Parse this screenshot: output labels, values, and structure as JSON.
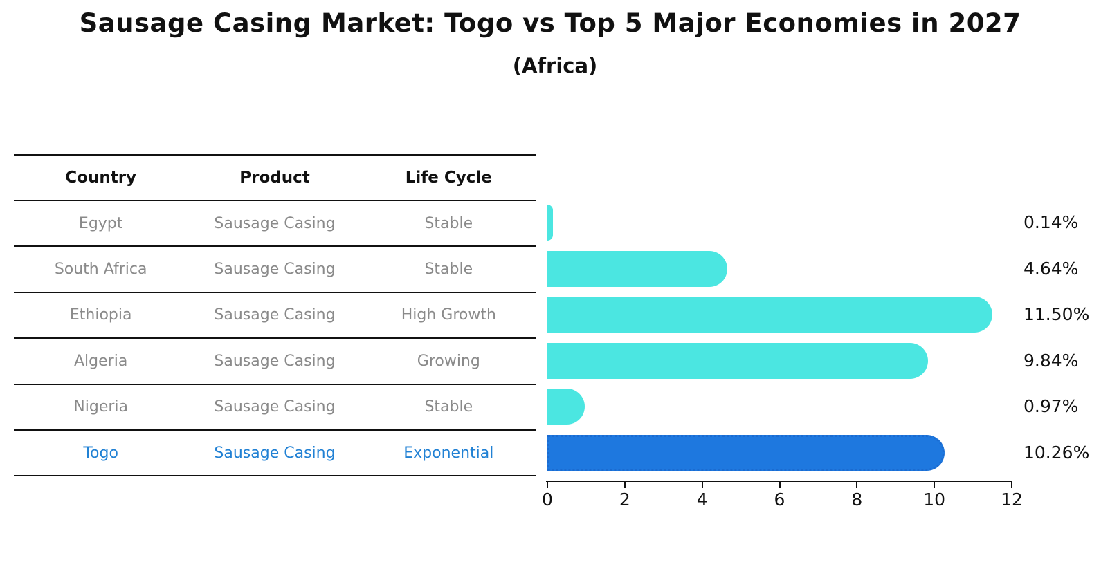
{
  "title": "Sausage Casing Market: Togo vs Top 5 Major Economies in 2027",
  "subtitle": "(Africa)",
  "table": {
    "headers": [
      "Country",
      "Product",
      "Life Cycle"
    ],
    "rows": [
      {
        "country": "Egypt",
        "product": "Sausage Casing",
        "life_cycle": "Stable",
        "highlight": false
      },
      {
        "country": "South Africa",
        "product": "Sausage Casing",
        "life_cycle": "Stable",
        "highlight": false
      },
      {
        "country": "Ethiopia",
        "product": "Sausage Casing",
        "life_cycle": "High Growth",
        "highlight": false
      },
      {
        "country": "Algeria",
        "product": "Sausage Casing",
        "life_cycle": "Growing",
        "highlight": false
      },
      {
        "country": "Nigeria",
        "product": "Sausage Casing",
        "life_cycle": "Stable",
        "highlight": false
      },
      {
        "country": "Togo",
        "product": "Sausage Casing",
        "life_cycle": "Exponential",
        "highlight": true
      }
    ]
  },
  "chart_data": {
    "type": "bar",
    "orientation": "horizontal",
    "title": "Sausage Casing Market: Togo vs Top 5 Major Economies in 2027",
    "subtitle": "(Africa)",
    "categories": [
      "Egypt",
      "South Africa",
      "Ethiopia",
      "Algeria",
      "Nigeria",
      "Togo"
    ],
    "values": [
      0.14,
      4.64,
      11.5,
      9.84,
      0.97,
      10.26
    ],
    "value_labels": [
      "0.14%",
      "4.64%",
      "11.50%",
      "9.84%",
      "0.97%",
      "10.26%"
    ],
    "unit": "percent",
    "xlim": [
      0,
      12
    ],
    "x_ticks": [
      0,
      2,
      4,
      6,
      8,
      10,
      12
    ],
    "x_tick_labels": [
      "0",
      "2",
      "4",
      "6",
      "8",
      "10",
      "12"
    ],
    "grid": false,
    "legend": false,
    "highlight_index": 5,
    "highlight_style": "dotted-border"
  },
  "colors": {
    "bar_default": "#4BE6E1",
    "bar_highlight": "#1E78DF",
    "highlight_border": "#1B6BD0",
    "highlight_text": "#2181D4",
    "table_text": "#8A8A8A",
    "header_text": "#111111",
    "axis_text": "#111111",
    "line_color": "#111111"
  }
}
